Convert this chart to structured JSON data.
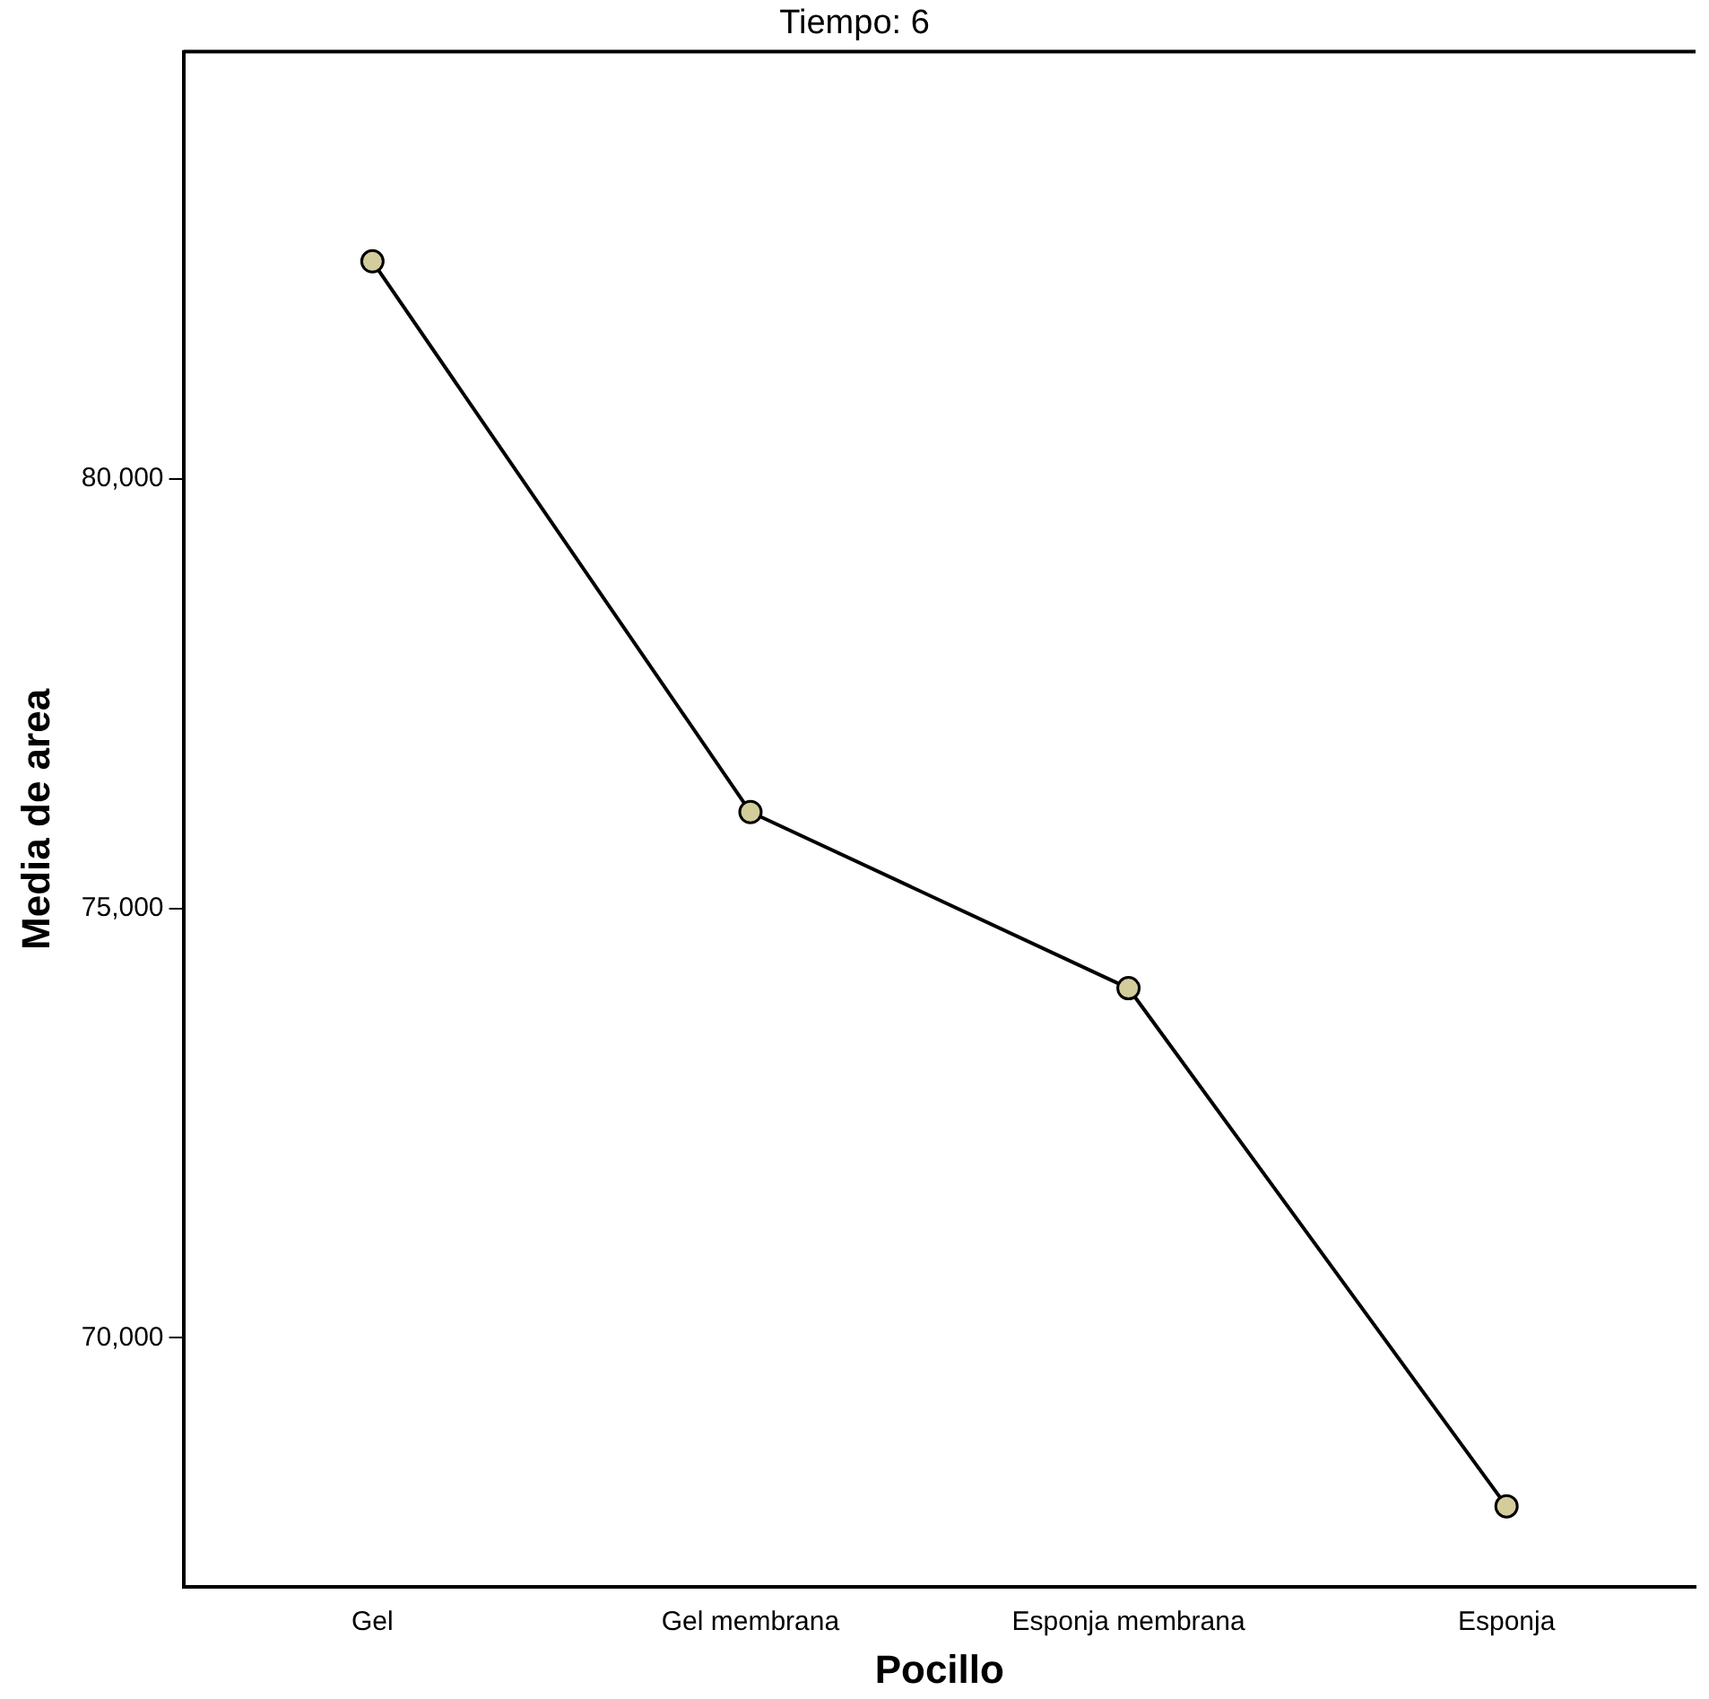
{
  "chart_data": {
    "type": "line",
    "title": "Tiempo: 6",
    "xlabel": "Pocillo",
    "ylabel": "Media de area",
    "categories": [
      "Gel",
      "Gel membrana",
      "Esponja membrana",
      "Esponja"
    ],
    "series": [
      {
        "color": "#000000",
        "values": [
          82530,
          76120,
          74070,
          68040
        ]
      }
    ],
    "ylim": [
      67100,
      84970
    ],
    "yticks": [
      {
        "value": 70000,
        "label": "70,000"
      },
      {
        "value": 75000,
        "label": "75,000"
      },
      {
        "value": 80000,
        "label": "80,000"
      }
    ],
    "grid": false,
    "legend": false,
    "marker": "circle",
    "line_style": "solid"
  }
}
